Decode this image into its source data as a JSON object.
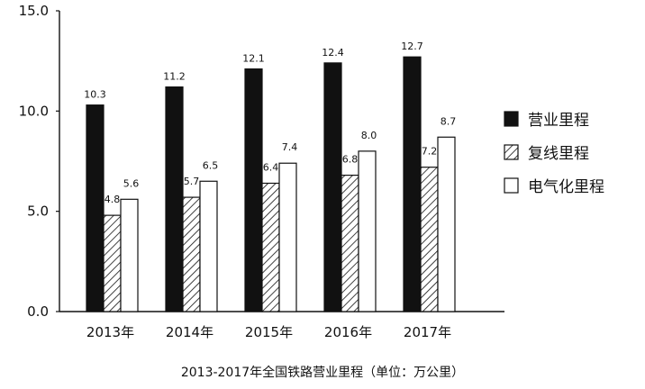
{
  "chart_data": {
    "type": "bar",
    "categories": [
      "2013年",
      "2014年",
      "2015年",
      "2016年",
      "2017年"
    ],
    "series": [
      {
        "name": "营业里程",
        "values": [
          10.3,
          11.2,
          12.1,
          12.4,
          12.7
        ],
        "fill": "solid-black"
      },
      {
        "name": "复线里程",
        "values": [
          4.8,
          5.7,
          6.4,
          6.8,
          7.2
        ],
        "fill": "diagonal-hatch"
      },
      {
        "name": "电气化里程",
        "values": [
          5.6,
          6.5,
          7.4,
          8.0,
          8.7
        ],
        "fill": "white"
      }
    ],
    "ylim": [
      0,
      15
    ],
    "yticks": [
      "0.0",
      "5.0",
      "10.0",
      "15.0"
    ],
    "caption": "2013-2017年全国铁路营业里程（单位：万公里）",
    "legend_position": "right",
    "grid": false
  }
}
